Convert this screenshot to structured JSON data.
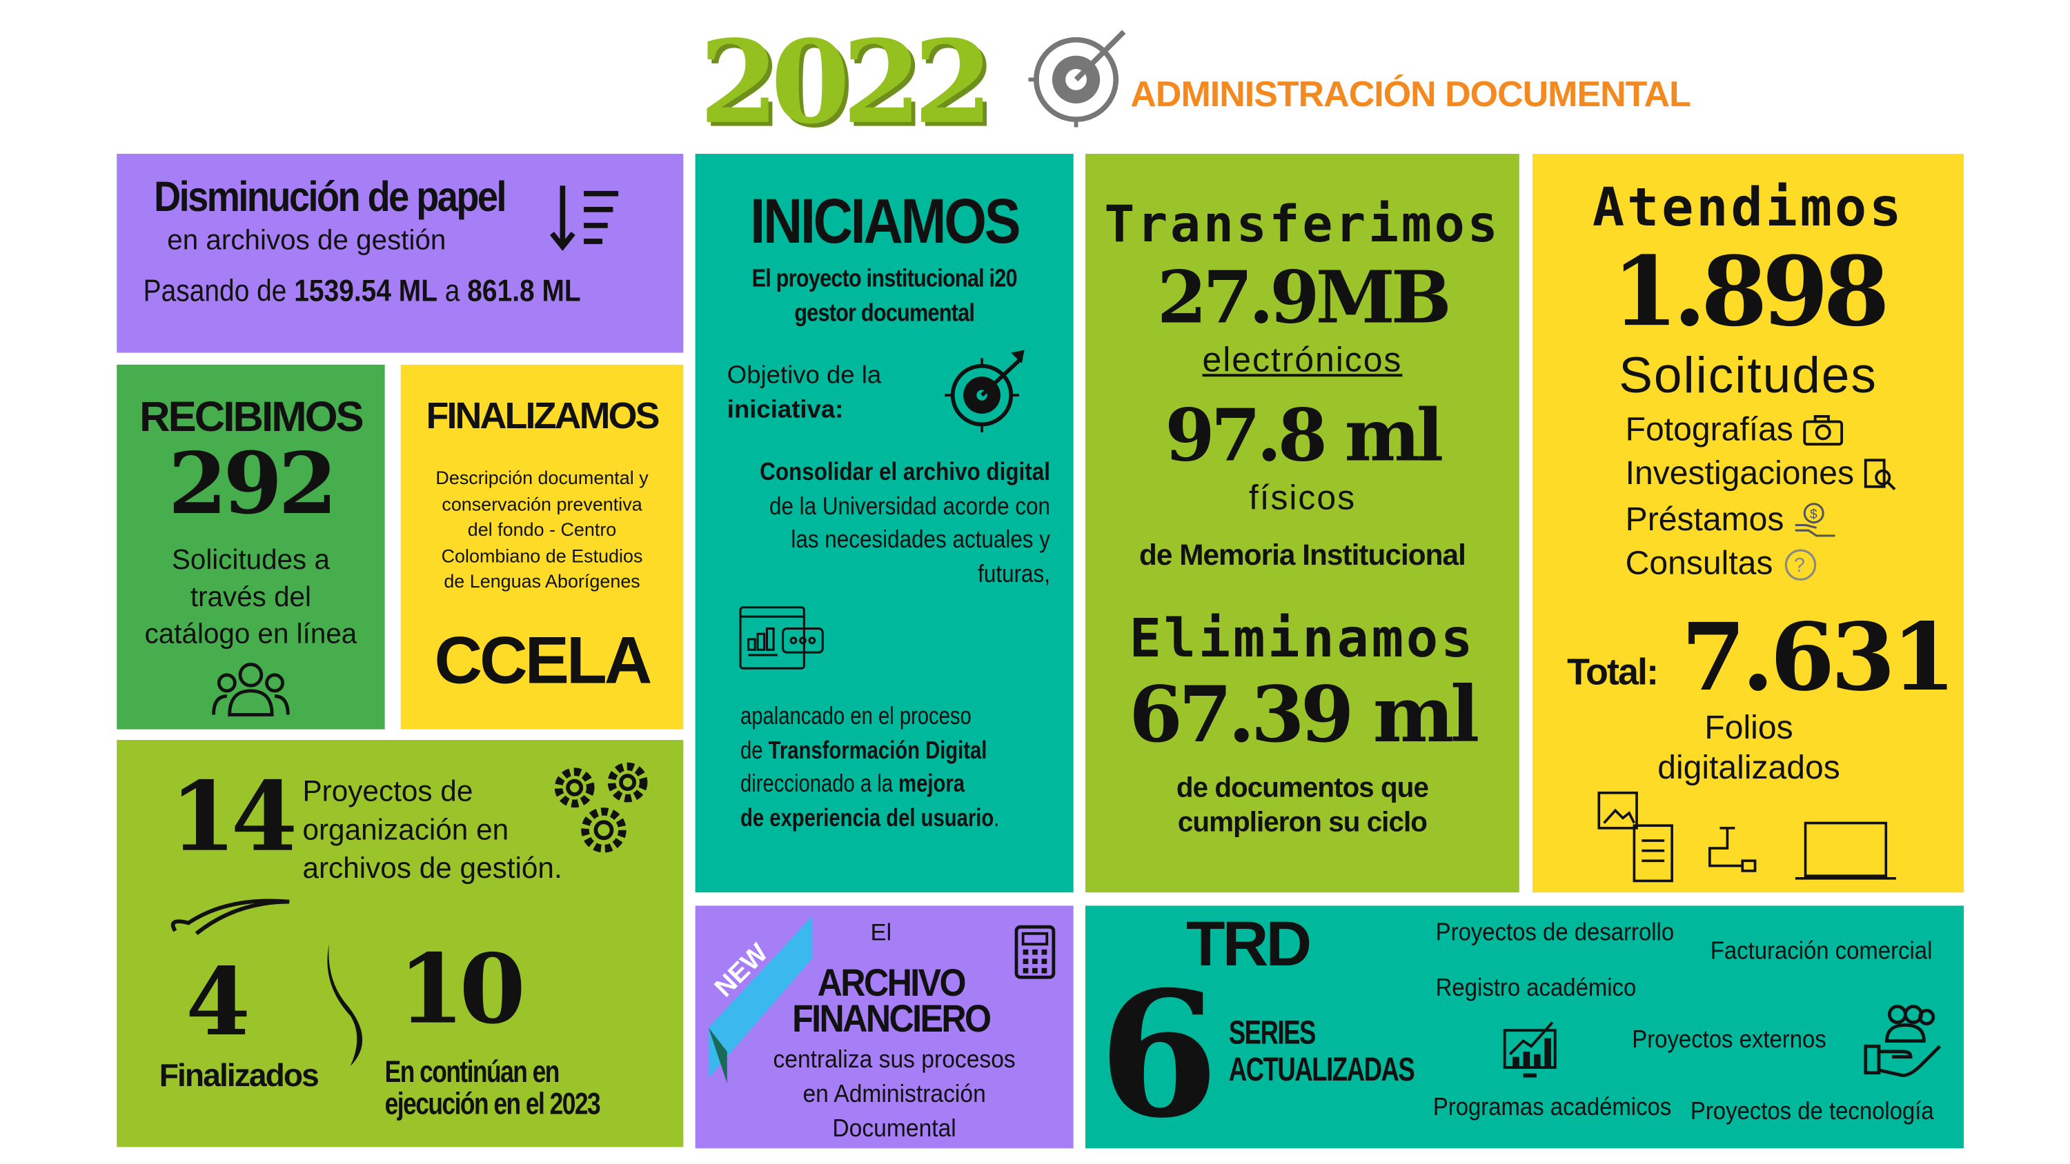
{
  "header": {
    "year": "2022",
    "title": "ADMINISTRACIÓN DOCUMENTAL"
  },
  "colors": {
    "purple": "#a67ff6",
    "green": "#46ae4d",
    "yellow": "#fddb26",
    "lime": "#9ac42a",
    "teal": "#00b89b",
    "orange": "#f4891f"
  },
  "papel": {
    "title": "Disminución de papel",
    "subtitle": "en archivos de gestión",
    "from_label": "Pasando de",
    "from": "1539.54 ML",
    "to_label": "a",
    "to": "861.8 ML"
  },
  "recibimos": {
    "title": "RECIBIMOS",
    "number": "292",
    "text": [
      "Solicitudes  a",
      "través del",
      "catálogo en línea"
    ]
  },
  "finalizamos": {
    "title": "FINALIZAMOS",
    "text": [
      "Descripción documental y",
      "conservación preventiva",
      "del fondo - Centro",
      "Colombiano de Estudios",
      "de Lenguas Aborígenes"
    ],
    "acronym": "CCELA"
  },
  "proyectos": {
    "number": "14",
    "text": [
      "Proyectos de",
      "organización en",
      "archivos de gestión."
    ],
    "finished_number": "4",
    "finished_label": "Finalizados",
    "ongoing_number": "10",
    "ongoing_label": [
      "En continúan en",
      "ejecución en el 2023"
    ]
  },
  "iniciamos": {
    "title": "INICIAMOS",
    "subtitle": [
      "El proyecto institucional  i20",
      "gestor documental"
    ],
    "objective_label": [
      "Objetivo de la",
      "iniciativa:"
    ],
    "objective_bold": "Consolidar el archivo digital",
    "objective_rest": [
      "de la Universidad acorde con",
      "las necesidades actuales y",
      "futuras,"
    ],
    "p2": {
      "l1": "apalancado en el proceso",
      "l2a": "de ",
      "l2b": "Transformación Digital",
      "l3a": "direccionado a la ",
      "l3b": "mejora",
      "l4": "de experiencia del usuario",
      "l4end": "."
    }
  },
  "archivo": {
    "badge": "NEW",
    "pre": "El",
    "title": [
      "ARCHIVO",
      "FINANCIERO"
    ],
    "text": [
      "centraliza sus procesos",
      "en Administración",
      "Documental"
    ]
  },
  "transferimos": {
    "title": "Transferimos",
    "electronic_value": "27.9MB",
    "electronic_label": "electrónicos",
    "physical_value": "97.8 ml",
    "physical_label": "físicos",
    "source": "de Memoria Institucional",
    "eliminated_title": "Eliminamos",
    "eliminated_value": "67.39 ml",
    "eliminated_label": [
      "de documentos que",
      "cumplieron su ciclo"
    ]
  },
  "atendimos": {
    "title": "Atendimos",
    "number": "1.898",
    "label": "Solicitudes",
    "items": [
      "Fotografías",
      "Investigaciones",
      "Préstamos",
      "Consultas"
    ],
    "total_label": "Total:",
    "total": "7.631",
    "total_caption": [
      "Folios",
      "digitalizados"
    ]
  },
  "trd": {
    "title": "TRD",
    "number": "6",
    "label": [
      "SERIES",
      "ACTUALIZADAS"
    ],
    "series": [
      "Proyectos de desarrollo",
      "Facturación comercial",
      "Registro académico",
      "Proyectos externos",
      "Programas académicos",
      "Proyectos de tecnología"
    ]
  }
}
